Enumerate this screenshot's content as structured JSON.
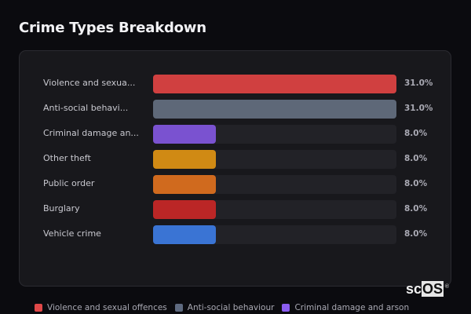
{
  "header": {
    "title": "Crime Types Breakdown"
  },
  "chart_data": {
    "type": "bar",
    "orientation": "horizontal",
    "title": "Crime Types Breakdown",
    "categories": [
      "Violence and sexual offences",
      "Anti-social behaviour",
      "Criminal damage and arson",
      "Other theft",
      "Public order",
      "Burglary",
      "Vehicle crime"
    ],
    "display_labels": [
      "Violence and sexua...",
      "Anti-social behavi...",
      "Criminal damage an...",
      "Other theft",
      "Public order",
      "Burglary",
      "Vehicle crime"
    ],
    "values": [
      31.0,
      31.0,
      8.0,
      8.0,
      8.0,
      8.0,
      8.0
    ],
    "value_labels": [
      "31.0%",
      "31.0%",
      "8.0%",
      "8.0%",
      "8.0%",
      "8.0%",
      "8.0%"
    ],
    "colors": [
      "#d04040",
      "#5e6878",
      "#7a52d0",
      "#d08a14",
      "#d06a1e",
      "#bb2626",
      "#3a74d4"
    ],
    "max": 31.0,
    "legend": [
      "Violence and sexual offences",
      "Anti-social behaviour",
      "Criminal damage and arson"
    ],
    "legend_position": "bottom"
  },
  "legend": [
    {
      "label": "Violence and sexual offences",
      "color": "#e04848"
    },
    {
      "label": "Anti-social behaviour",
      "color": "#5e6a80"
    },
    {
      "label": "Criminal damage and arson",
      "color": "#8a5cf0"
    }
  ],
  "logo": {
    "text_sc": "sc",
    "text_os": "OS",
    "reg": "®"
  }
}
